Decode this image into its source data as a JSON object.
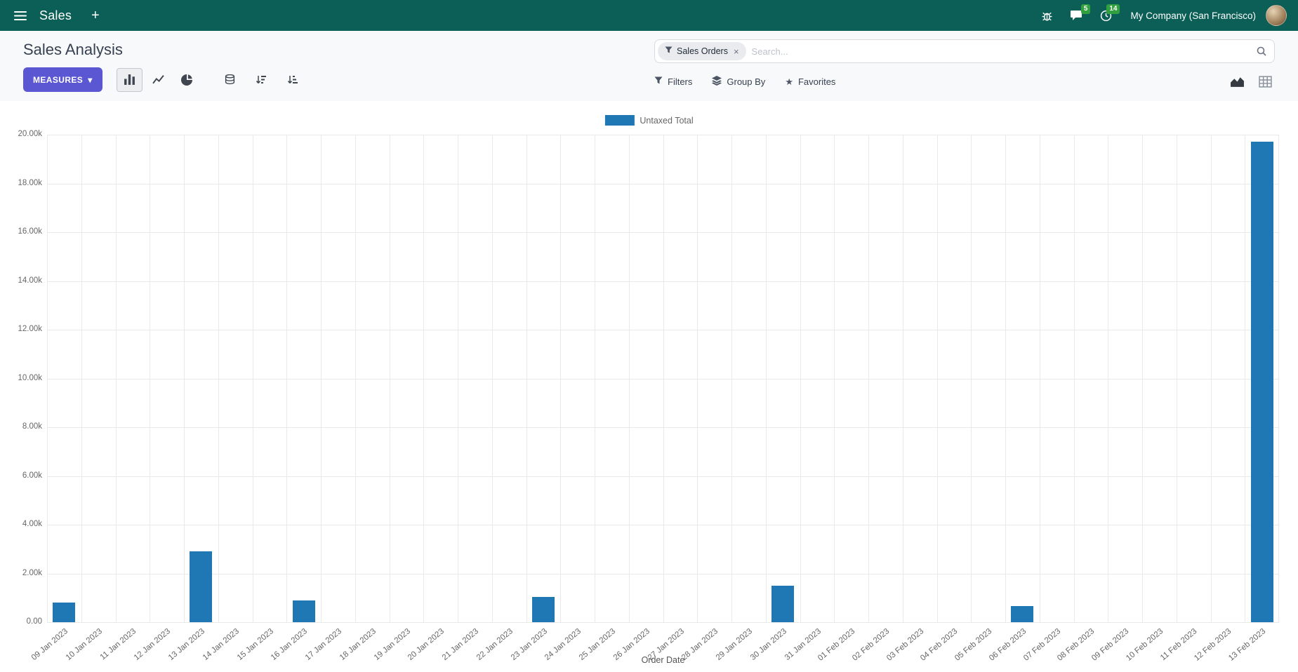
{
  "topbar": {
    "app_name": "Sales",
    "company": "My Company (San Francisco)",
    "badges": {
      "messages": "5",
      "activities": "14"
    }
  },
  "control_panel": {
    "title": "Sales Analysis",
    "measures_label": "MEASURES"
  },
  "search": {
    "facet_label": "Sales Orders",
    "placeholder": "Search...",
    "filters_label": "Filters",
    "group_by_label": "Group By",
    "favorites_label": "Favorites"
  },
  "icons": {
    "plus": "+",
    "caret_down": "▾",
    "close": "×",
    "star": "★"
  },
  "chart_data": {
    "type": "bar",
    "legend_label": "Untaxed Total",
    "series_color": "#1f77b4",
    "xlabel": "Order Date",
    "ylim": [
      0,
      20000
    ],
    "grid": true,
    "legend_position": "top-center",
    "y_ticks": [
      "0.00",
      "2.00k",
      "4.00k",
      "6.00k",
      "8.00k",
      "10.00k",
      "12.00k",
      "14.00k",
      "16.00k",
      "18.00k",
      "20.00k"
    ],
    "categories": [
      "09 Jan 2023",
      "10 Jan 2023",
      "11 Jan 2023",
      "12 Jan 2023",
      "13 Jan 2023",
      "14 Jan 2023",
      "15 Jan 2023",
      "16 Jan 2023",
      "17 Jan 2023",
      "18 Jan 2023",
      "19 Jan 2023",
      "20 Jan 2023",
      "21 Jan 2023",
      "22 Jan 2023",
      "23 Jan 2023",
      "24 Jan 2023",
      "25 Jan 2023",
      "26 Jan 2023",
      "27 Jan 2023",
      "28 Jan 2023",
      "29 Jan 2023",
      "30 Jan 2023",
      "31 Jan 2023",
      "01 Feb 2023",
      "02 Feb 2023",
      "03 Feb 2023",
      "04 Feb 2023",
      "05 Feb 2023",
      "06 Feb 2023",
      "07 Feb 2023",
      "08 Feb 2023",
      "09 Feb 2023",
      "10 Feb 2023",
      "11 Feb 2023",
      "12 Feb 2023",
      "13 Feb 2023"
    ],
    "values": [
      800,
      0,
      0,
      0,
      2900,
      0,
      0,
      900,
      0,
      0,
      0,
      0,
      0,
      0,
      1050,
      0,
      0,
      0,
      0,
      0,
      0,
      1500,
      0,
      0,
      0,
      0,
      0,
      0,
      650,
      0,
      0,
      0,
      0,
      0,
      0,
      19700
    ]
  }
}
